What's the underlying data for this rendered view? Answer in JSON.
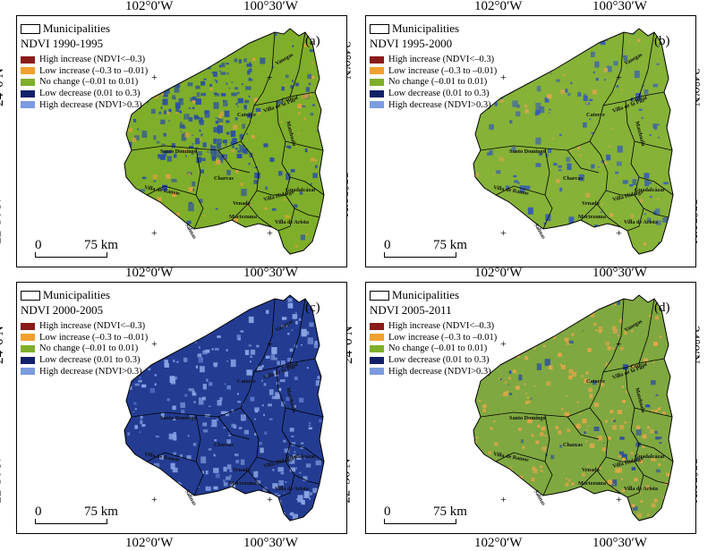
{
  "coord_labels": {
    "lon_left": "102°0′W",
    "lon_right": "100°30′W",
    "lat_top": "24°0′N",
    "lat_bottom": "22°30′N"
  },
  "legend": {
    "municipalities": "Municipalities",
    "classes": [
      {
        "label": "High increase (NDVI<–0.3)",
        "color": "#8b1a1a"
      },
      {
        "label": "Low increase (–0.3 to –0.01)",
        "color": "#f0a030"
      },
      {
        "label": "No change (–0.01 to 0.01)",
        "color": "#7fae2a"
      },
      {
        "label": "Low decrease (0.01 to 0.3)",
        "color": "#12206a"
      },
      {
        "label": "High decrease (NDVI>0.3)",
        "color": "#7c9be0"
      }
    ]
  },
  "scalebar": {
    "zero": "0",
    "distance": "75 km"
  },
  "towns": {
    "santo_domingo": "Santo Domingo",
    "villa_de_ramos": "Villa de Ramos",
    "charcas": "Charcas",
    "catorce": "Catorce",
    "venado": "Venado",
    "moctezuma": "Moctezuma",
    "guadalcazar": "Guadalcázar",
    "villa_hidalgo": "Villa Hidalgo",
    "villa_de_arista": "Villa de Arista",
    "salinas": "Salinas",
    "villa_de_la_paz": "Villa de la Paz",
    "matehuala": "Matehuala",
    "vanegas": "Vanegas",
    "cedral": "Cedral"
  },
  "panels": [
    {
      "id": "a",
      "label": "(a)",
      "period": "NDVI 1990-1995",
      "base_color": "#7fae2a",
      "blue_color": "#2c4fa0",
      "orange_color": "#e0a040",
      "blue_density": 0.45,
      "orange_density": 0.12
    },
    {
      "id": "b",
      "label": "(b)",
      "period": "NDVI 1995-2000",
      "base_color": "#86b238",
      "blue_color": "#3a5eb0",
      "orange_color": "#d9a550",
      "blue_density": 0.22,
      "orange_density": 0.06
    },
    {
      "id": "c",
      "label": "(c)",
      "period": "NDVI 2000-2005",
      "base_color": "#233c92",
      "blue_color": "#8aa5e6",
      "orange_color": "#5f7ed0",
      "blue_density": 0.45,
      "orange_density": 0.08
    },
    {
      "id": "d",
      "label": "(d)",
      "period": "NDVI 2005-2011",
      "base_color": "#7fa840",
      "blue_color": "#2f4f9a",
      "orange_color": "#e3a64a",
      "blue_density": 0.08,
      "orange_density": 0.35
    }
  ]
}
